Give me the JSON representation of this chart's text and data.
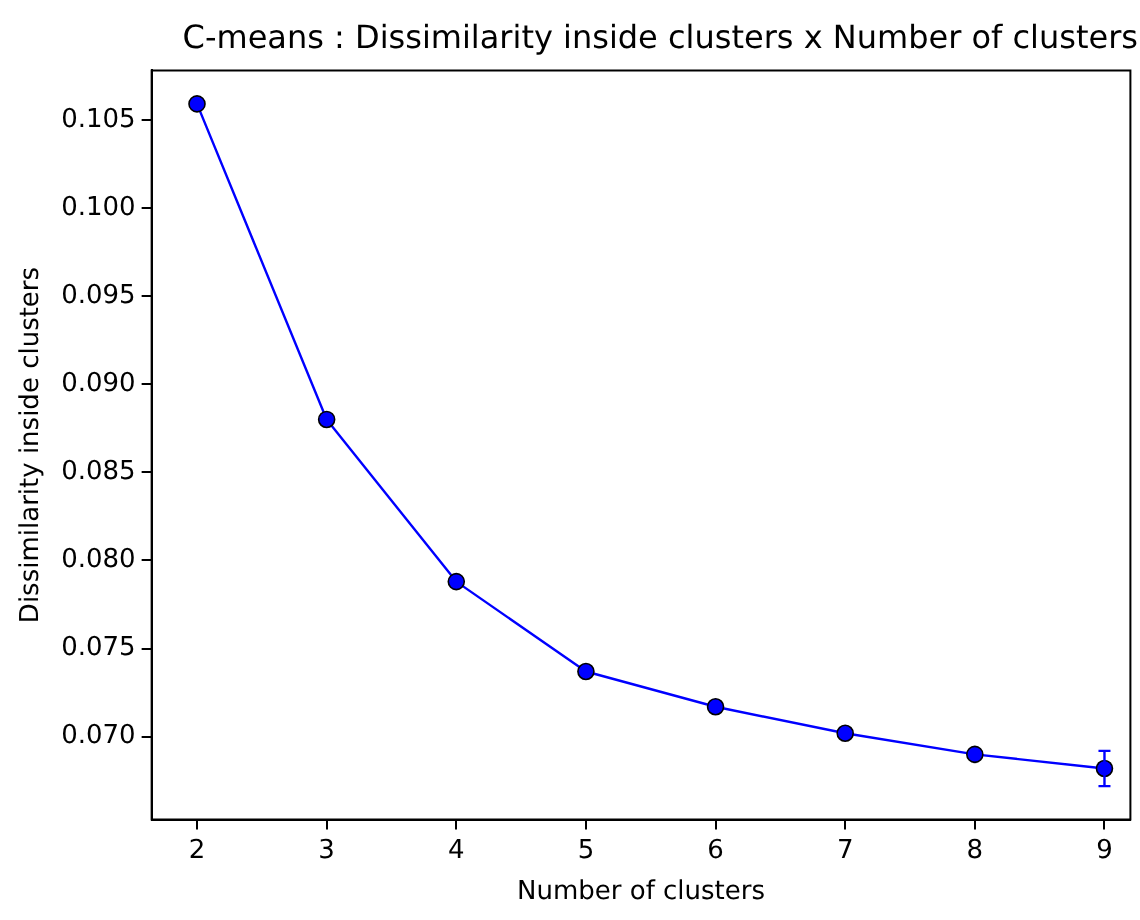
{
  "chart_data": {
    "type": "line",
    "title": "C-means : Dissimilarity inside clusters x Number of clusters",
    "xlabel": "Number of clusters",
    "ylabel": "Dissimilarity inside clusters",
    "x": [
      2,
      3,
      4,
      5,
      6,
      7,
      8,
      9
    ],
    "series": [
      {
        "color": "#0000ff",
        "values": [
          0.1059,
          0.088,
          0.0788,
          0.0737,
          0.0717,
          0.0702,
          0.069,
          0.0682
        ],
        "errors": [
          null,
          null,
          null,
          null,
          null,
          null,
          null,
          0.001
        ]
      }
    ],
    "xlim": [
      1.65,
      9.2
    ],
    "xticks": [
      2,
      3,
      4,
      5,
      6,
      7,
      8,
      9
    ],
    "ylim": [
      0.0653,
      0.1078
    ],
    "yticks": [
      {
        "value": 0.07,
        "label": "0.070"
      },
      0.075,
      {
        "value": 0.08,
        "label": "0.080"
      },
      0.085,
      {
        "value": 0.09,
        "label": "0.090"
      },
      0.095,
      {
        "value": 0.1,
        "label": "0.100"
      },
      0.105
    ],
    "marker": "circle",
    "line_style": "solid",
    "grid": false,
    "legend": false
  }
}
